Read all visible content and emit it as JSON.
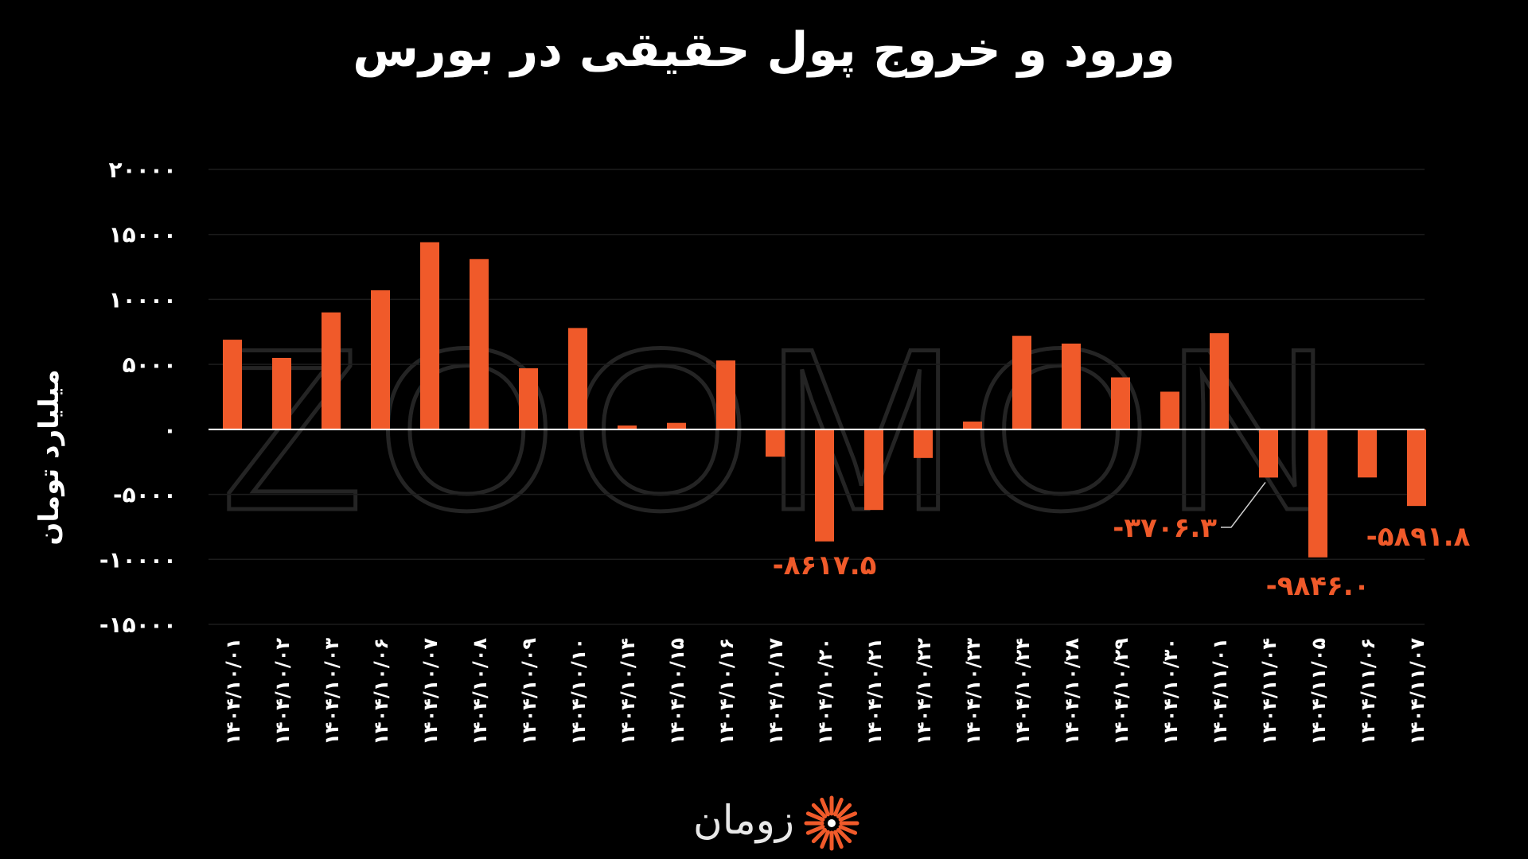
{
  "title": "ورود و خروج پول حقیقی در بورس",
  "brand": {
    "name": "زومان",
    "watermark": "ZOOMON"
  },
  "colors": {
    "bar": "#f05a2a",
    "label": "#f05a2a",
    "background": "#000000",
    "text": "#ffffff",
    "grid": "#1c1c1c"
  },
  "chart_data": {
    "type": "bar",
    "title": "ورود و خروج پول حقیقی در بورس",
    "ylabel": "میلیارد تومان",
    "xlabel": "",
    "ylim": [
      -15000,
      20000
    ],
    "yticks": [
      20000,
      15000,
      10000,
      5000,
      0,
      -5000,
      -10000,
      -15000
    ],
    "ytick_labels": [
      "۲۰۰۰۰",
      "۱۵۰۰۰",
      "۱۰۰۰۰",
      "۵۰۰۰",
      "۰",
      "-۵۰۰۰",
      "-۱۰۰۰۰",
      "-۱۵۰۰۰"
    ],
    "grid": true,
    "legend": "none",
    "categories": [
      "۱۴۰۴/۱۰/۰۱",
      "۱۴۰۴/۱۰/۰۲",
      "۱۴۰۴/۱۰/۰۳",
      "۱۴۰۴/۱۰/۰۶",
      "۱۴۰۴/۱۰/۰۷",
      "۱۴۰۴/۱۰/۰۸",
      "۱۴۰۴/۱۰/۰۹",
      "۱۴۰۴/۱۰/۱۰",
      "۱۴۰۴/۱۰/۱۴",
      "۱۴۰۴/۱۰/۱۵",
      "۱۴۰۴/۱۰/۱۶",
      "۱۴۰۴/۱۰/۱۷",
      "۱۴۰۴/۱۰/۲۰",
      "۱۴۰۴/۱۰/۲۱",
      "۱۴۰۴/۱۰/۲۲",
      "۱۴۰۴/۱۰/۲۳",
      "۱۴۰۴/۱۰/۲۴",
      "۱۴۰۴/۱۰/۲۸",
      "۱۴۰۴/۱۰/۲۹",
      "۱۴۰۴/۱۰/۳۰",
      "۱۴۰۴/۱۱/۰۱",
      "۱۴۰۴/۱۱/۰۴",
      "۱۴۰۴/۱۱/۰۵",
      "۱۴۰۴/۱۱/۰۶",
      "۱۴۰۴/۱۱/۰۷"
    ],
    "values": [
      6900,
      5500,
      9000,
      10700,
      14400,
      13100,
      4700,
      7800,
      300,
      500,
      5300,
      -2100,
      -8617.5,
      -6200,
      -2200,
      600,
      7200,
      6600,
      4000,
      2900,
      7400,
      -3706.3,
      -9846.0,
      -3700,
      -5891.8
    ],
    "annotations": [
      {
        "index": 12,
        "text": "-۸۶۱۷.۵"
      },
      {
        "index": 21,
        "text": "-۳۷۰۶.۳"
      },
      {
        "index": 22,
        "text": "-۹۸۴۶.۰"
      },
      {
        "index": 24,
        "text": "-۵۸۹۱.۸"
      }
    ]
  }
}
